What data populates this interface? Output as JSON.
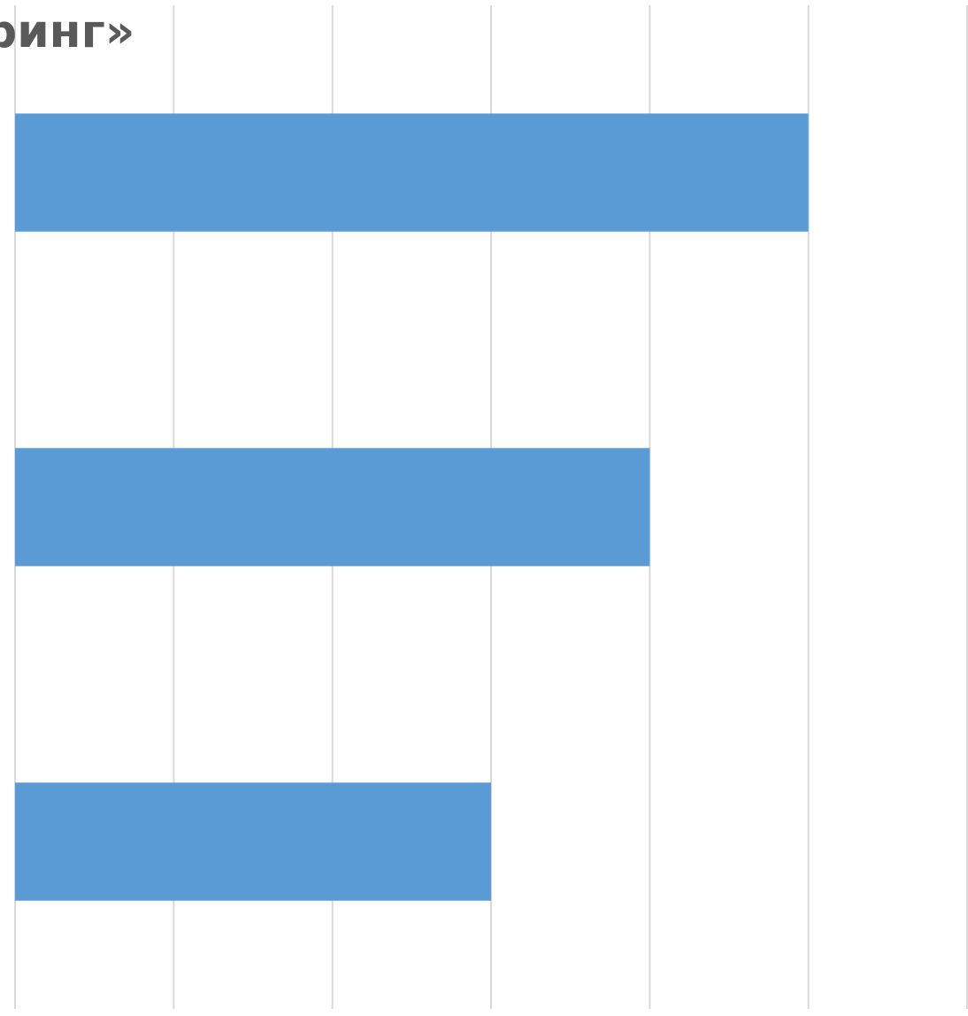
{
  "chart_data": {
    "type": "bar",
    "orientation": "horizontal",
    "title": "ринг»",
    "xlabel": "",
    "ylabel": "",
    "categories": [
      "",
      "",
      ""
    ],
    "series": [
      {
        "values": [
          5,
          4,
          3
        ]
      }
    ],
    "xlim": [
      0,
      6
    ],
    "x_gridlines": [
      0,
      1,
      2,
      3,
      4,
      5,
      6
    ],
    "grid": true,
    "legend": "none",
    "bar_color": "#5B9BD5",
    "grid_color": "#D9D9D9",
    "title_color": "#595959"
  }
}
